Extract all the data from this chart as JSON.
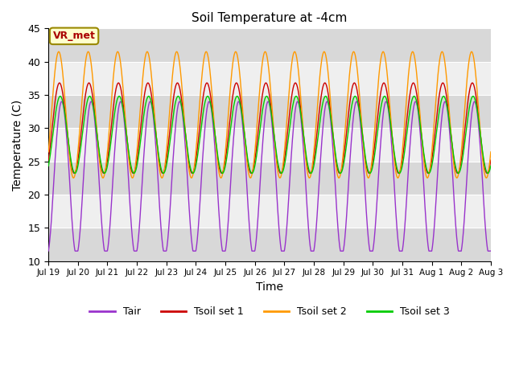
{
  "title": "Soil Temperature at -4cm",
  "xlabel": "Time",
  "ylabel": "Temperature (C)",
  "ylim": [
    10,
    45
  ],
  "yticks": [
    10,
    15,
    20,
    25,
    30,
    35,
    40,
    45
  ],
  "xtick_labels": [
    "Jul 19",
    "Jul 20",
    "Jul 21",
    "Jul 22",
    "Jul 23",
    "Jul 24",
    "Jul 25",
    "Jul 26",
    "Jul 27",
    "Jul 28",
    "Jul 29",
    "Jul 30",
    "Jul 31",
    "Aug 1",
    "Aug 2",
    "Aug 3"
  ],
  "legend_labels": [
    "Tair",
    "Tsoil set 1",
    "Tsoil set 2",
    "Tsoil set 3"
  ],
  "line_colors": [
    "#9933cc",
    "#cc0000",
    "#ff9900",
    "#00cc00"
  ],
  "annotation_text": "VR_met",
  "annotation_color": "#aa0000",
  "annotation_bg": "#ffffcc",
  "annotation_border": "#998800",
  "figure_bg": "#ffffff",
  "plot_bg_dark": "#d8d8d8",
  "plot_bg_light": "#f0f0f0",
  "grid_color": "#ffffff",
  "n_days": 15,
  "points_per_day": 96,
  "band_yticks": [
    10,
    15,
    20,
    25,
    30,
    35,
    40,
    45
  ]
}
